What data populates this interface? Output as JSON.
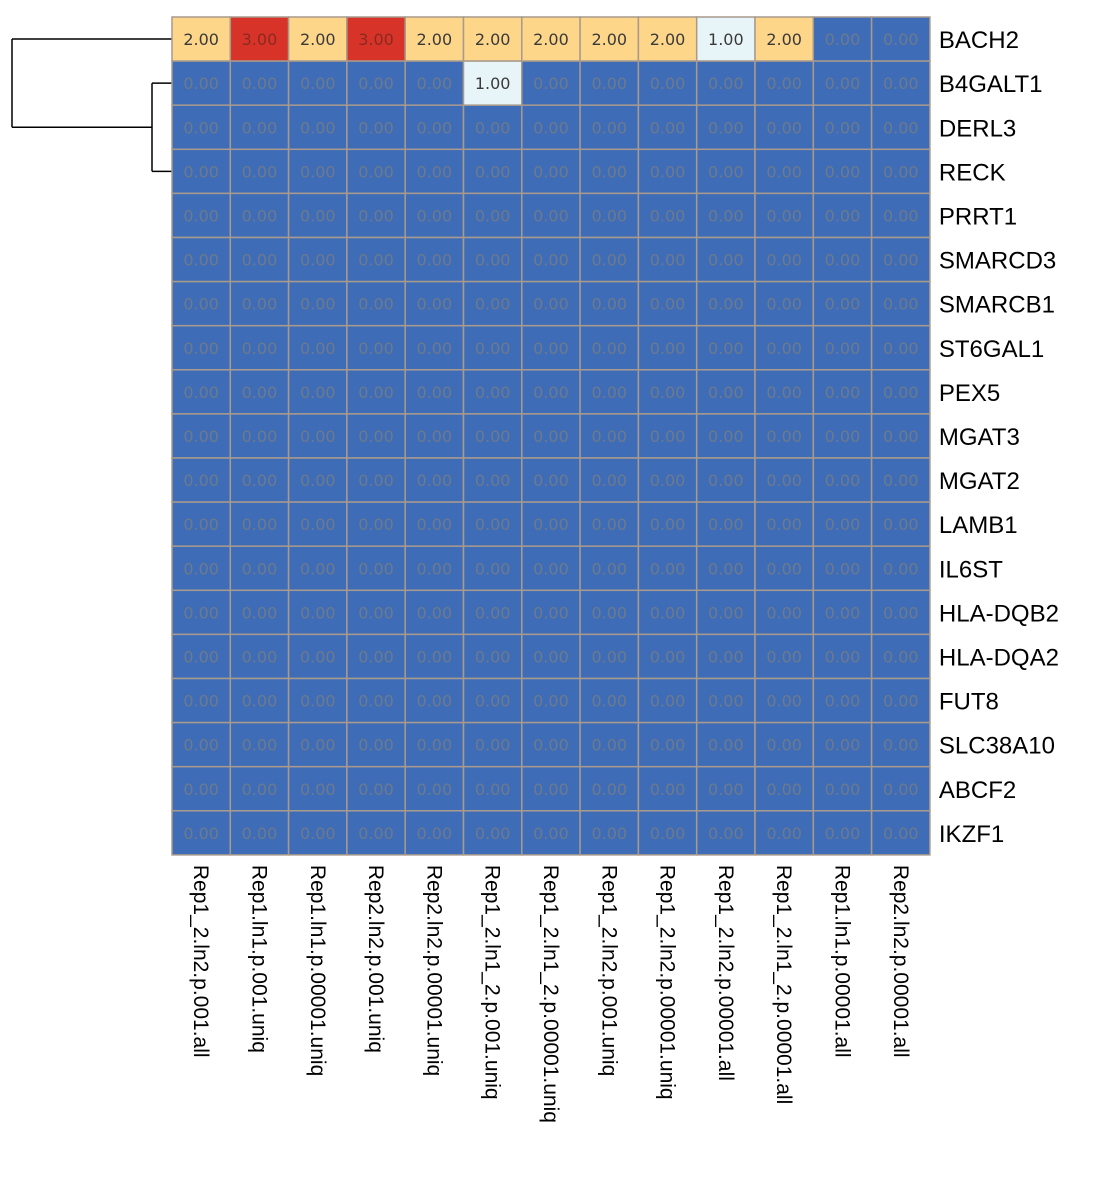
{
  "chart_data": {
    "type": "heatmap",
    "title": "",
    "xlabel": "",
    "ylabel": "",
    "columns": [
      "Rep1_2.ln2.p.001.all",
      "Rep1.ln1.p.001.uniq",
      "Rep1.ln1.p.00001.uniq",
      "Rep2.ln2.p.001.uniq",
      "Rep2.ln2.p.00001.uniq",
      "Rep1_2.ln1_2.p.001.uniq",
      "Rep1_2.ln1_2.p.00001.uniq",
      "Rep1_2.ln2.p.001.uniq",
      "Rep1_2.ln2.p.00001.uniq",
      "Rep1_2.ln2.p.00001.all",
      "Rep1_2.ln1_2.p.00001.all",
      "Rep1.ln1.p.00001.all",
      "Rep2.ln2.p.00001.all"
    ],
    "rows": [
      "BACH2",
      "B4GALT1",
      "DERL3",
      "RECK",
      "PRRT1",
      "SMARCD3",
      "SMARCB1",
      "ST6GAL1",
      "PEX5",
      "MGAT3",
      "MGAT2",
      "LAMB1",
      "IL6ST",
      "HLA-DQB2",
      "HLA-DQA2",
      "FUT8",
      "SLC38A10",
      "ABCF2",
      "IKZF1"
    ],
    "values": [
      [
        "2.00",
        "3.00",
        "2.00",
        "3.00",
        "2.00",
        "2.00",
        "2.00",
        "2.00",
        "2.00",
        "1.00",
        "2.00",
        "0.00",
        "0.00"
      ],
      [
        "0.00",
        "0.00",
        "0.00",
        "0.00",
        "0.00",
        "1.00",
        "0.00",
        "0.00",
        "0.00",
        "0.00",
        "0.00",
        "0.00",
        "0.00"
      ],
      [
        "0.00",
        "0.00",
        "0.00",
        "0.00",
        "0.00",
        "0.00",
        "0.00",
        "0.00",
        "0.00",
        "0.00",
        "0.00",
        "0.00",
        "0.00"
      ],
      [
        "0.00",
        "0.00",
        "0.00",
        "0.00",
        "0.00",
        "0.00",
        "0.00",
        "0.00",
        "0.00",
        "0.00",
        "0.00",
        "0.00",
        "0.00"
      ],
      [
        "0.00",
        "0.00",
        "0.00",
        "0.00",
        "0.00",
        "0.00",
        "0.00",
        "0.00",
        "0.00",
        "0.00",
        "0.00",
        "0.00",
        "0.00"
      ],
      [
        "0.00",
        "0.00",
        "0.00",
        "0.00",
        "0.00",
        "0.00",
        "0.00",
        "0.00",
        "0.00",
        "0.00",
        "0.00",
        "0.00",
        "0.00"
      ],
      [
        "0.00",
        "0.00",
        "0.00",
        "0.00",
        "0.00",
        "0.00",
        "0.00",
        "0.00",
        "0.00",
        "0.00",
        "0.00",
        "0.00",
        "0.00"
      ],
      [
        "0.00",
        "0.00",
        "0.00",
        "0.00",
        "0.00",
        "0.00",
        "0.00",
        "0.00",
        "0.00",
        "0.00",
        "0.00",
        "0.00",
        "0.00"
      ],
      [
        "0.00",
        "0.00",
        "0.00",
        "0.00",
        "0.00",
        "0.00",
        "0.00",
        "0.00",
        "0.00",
        "0.00",
        "0.00",
        "0.00",
        "0.00"
      ],
      [
        "0.00",
        "0.00",
        "0.00",
        "0.00",
        "0.00",
        "0.00",
        "0.00",
        "0.00",
        "0.00",
        "0.00",
        "0.00",
        "0.00",
        "0.00"
      ],
      [
        "0.00",
        "0.00",
        "0.00",
        "0.00",
        "0.00",
        "0.00",
        "0.00",
        "0.00",
        "0.00",
        "0.00",
        "0.00",
        "0.00",
        "0.00"
      ],
      [
        "0.00",
        "0.00",
        "0.00",
        "0.00",
        "0.00",
        "0.00",
        "0.00",
        "0.00",
        "0.00",
        "0.00",
        "0.00",
        "0.00",
        "0.00"
      ],
      [
        "0.00",
        "0.00",
        "0.00",
        "0.00",
        "0.00",
        "0.00",
        "0.00",
        "0.00",
        "0.00",
        "0.00",
        "0.00",
        "0.00",
        "0.00"
      ],
      [
        "0.00",
        "0.00",
        "0.00",
        "0.00",
        "0.00",
        "0.00",
        "0.00",
        "0.00",
        "0.00",
        "0.00",
        "0.00",
        "0.00",
        "0.00"
      ],
      [
        "0.00",
        "0.00",
        "0.00",
        "0.00",
        "0.00",
        "0.00",
        "0.00",
        "0.00",
        "0.00",
        "0.00",
        "0.00",
        "0.00",
        "0.00"
      ],
      [
        "0.00",
        "0.00",
        "0.00",
        "0.00",
        "0.00",
        "0.00",
        "0.00",
        "0.00",
        "0.00",
        "0.00",
        "0.00",
        "0.00",
        "0.00"
      ],
      [
        "0.00",
        "0.00",
        "0.00",
        "0.00",
        "0.00",
        "0.00",
        "0.00",
        "0.00",
        "0.00",
        "0.00",
        "0.00",
        "0.00",
        "0.00"
      ],
      [
        "0.00",
        "0.00",
        "0.00",
        "0.00",
        "0.00",
        "0.00",
        "0.00",
        "0.00",
        "0.00",
        "0.00",
        "0.00",
        "0.00",
        "0.00"
      ],
      [
        "0.00",
        "0.00",
        "0.00",
        "0.00",
        "0.00",
        "0.00",
        "0.00",
        "0.00",
        "0.00",
        "0.00",
        "0.00",
        "0.00",
        "0.00"
      ]
    ],
    "color_scale": {
      "0": "#3f6cb7",
      "1": "#e8f5f8",
      "2": "#fdd68a",
      "3": "#d83329"
    },
    "cell_border_color": "#a89a8c",
    "text_color_dark_cells": "#6d7a8c",
    "text_color_light_cells": "#3a3a3a",
    "text_color_red_cells": "#8a2a1f",
    "dendrogram": {
      "side": "left",
      "clusters": [
        {
          "members": [
            "B4GALT1",
            "DERL3",
            "RECK"
          ]
        },
        {
          "members": [
            "BACH2",
            [
              "B4GALT1",
              "DERL3",
              "RECK"
            ]
          ]
        }
      ]
    },
    "grid": true,
    "legend": "none"
  }
}
